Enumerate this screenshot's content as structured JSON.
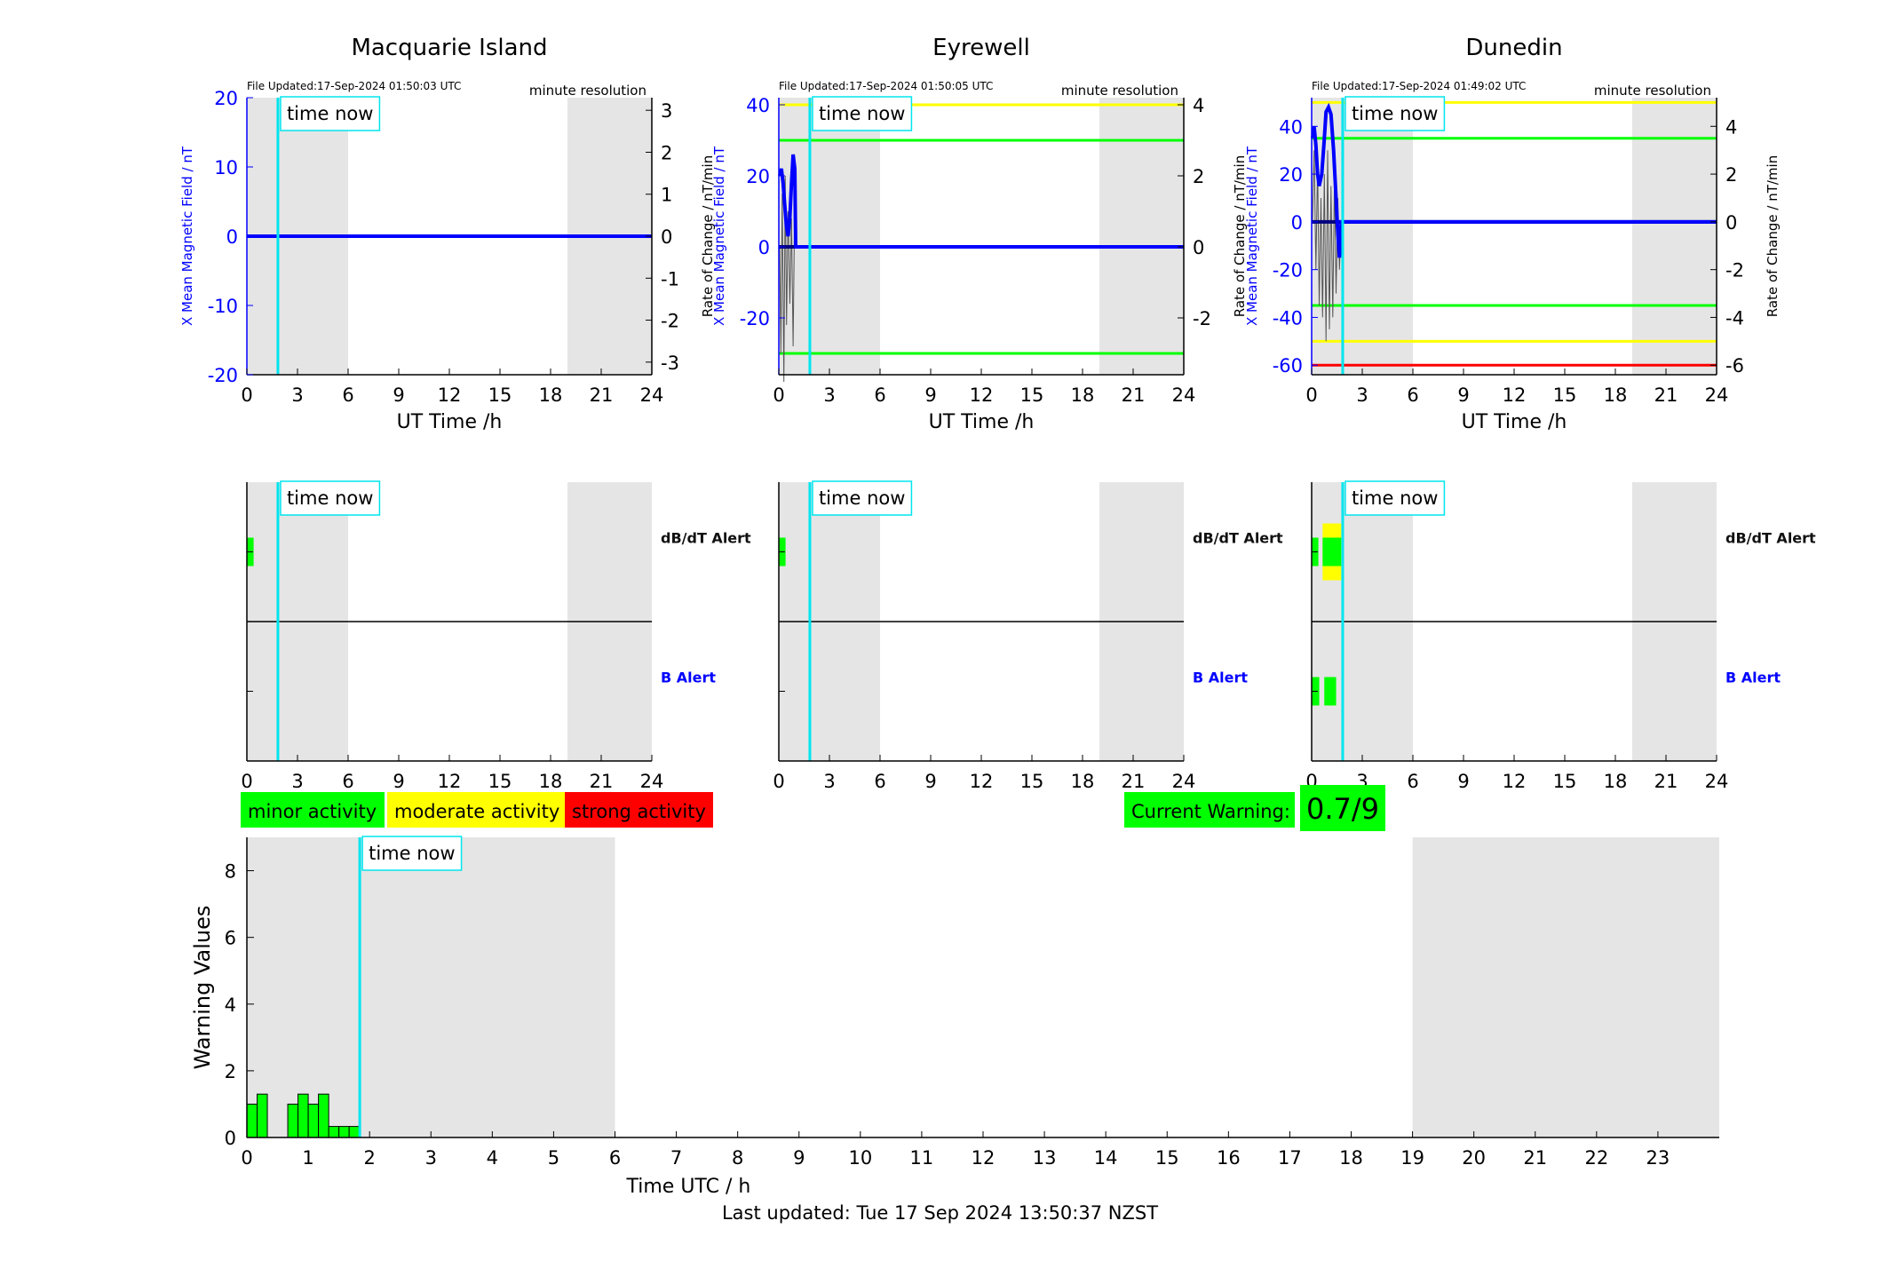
{
  "footer": "Last updated: Tue 17 Sep 2024 13:50:37 NZST",
  "legend": {
    "minor": "minor activity",
    "moderate": "moderate activity",
    "strong": "strong activity",
    "current_warning_label": "Current Warning:",
    "current_warning_value": "0.7/9"
  },
  "colors": {
    "minor": "#00ff00",
    "moderate": "#ffff00",
    "strong": "#ff0000",
    "now_line": "#00e5ee",
    "field_line": "#0000ff",
    "dark_line": "#000080",
    "shade": "#e5e5e5"
  },
  "chart_data": [
    {
      "type": "line",
      "title": "Macquarie Island",
      "updated": "File Updated:17-Sep-2024 01:50:03 UTC",
      "resolution": "minute resolution",
      "xlabel": "UT Time /h",
      "ylabel": "X Mean Magnetic Field / nT",
      "y2label": "Rate of Change / nT/min",
      "xlim": [
        0,
        24
      ],
      "xticks": [
        0,
        3,
        6,
        9,
        12,
        15,
        18,
        21,
        24
      ],
      "ylim": [
        -20,
        20
      ],
      "yticks": [
        -20,
        -10,
        0,
        10,
        20
      ],
      "y2lim": [
        -3.3,
        3.3
      ],
      "y2ticks": [
        -3,
        -2,
        -1,
        0,
        1,
        2,
        3
      ],
      "shade": [
        [
          0,
          6
        ],
        [
          19,
          24
        ]
      ],
      "now_label": "time now",
      "now": 1.84,
      "thresholds": [],
      "field": [
        [
          0,
          0
        ],
        [
          24,
          0
        ]
      ],
      "rate": []
    },
    {
      "type": "line",
      "title": "Eyrewell",
      "updated": "File Updated:17-Sep-2024 01:50:05 UTC",
      "resolution": "minute resolution",
      "xlabel": "UT Time /h",
      "ylabel": "X Mean Magnetic Field / nT",
      "y2label": "Rate of Change / nT/min",
      "xlim": [
        0,
        24
      ],
      "xticks": [
        0,
        3,
        6,
        9,
        12,
        15,
        18,
        21,
        24
      ],
      "ylim": [
        -36,
        42
      ],
      "yticks": [
        -20,
        0,
        20,
        40
      ],
      "y2lim": [
        -3.6,
        4.2
      ],
      "y2ticks": [
        -2,
        0,
        2,
        4
      ],
      "shade": [
        [
          0,
          6
        ],
        [
          19,
          24
        ]
      ],
      "now_label": "time now",
      "now": 1.84,
      "thresholds": [
        {
          "y": 40,
          "color": "#ffff00"
        },
        {
          "y": 30,
          "color": "#00ff00"
        },
        {
          "y": -30,
          "color": "#00ff00"
        }
      ],
      "field": [
        [
          0.05,
          20
        ],
        [
          0.15,
          22
        ],
        [
          0.25,
          18
        ],
        [
          0.35,
          12
        ],
        [
          0.45,
          6
        ],
        [
          0.55,
          3
        ],
        [
          0.65,
          8
        ],
        [
          0.75,
          18
        ],
        [
          0.85,
          26
        ],
        [
          0.95,
          22
        ],
        [
          1.0,
          0
        ],
        [
          24,
          0
        ]
      ],
      "rate": [
        [
          0.05,
          0
        ],
        [
          0.12,
          -3
        ],
        [
          0.2,
          1.5
        ],
        [
          0.3,
          -3.8
        ],
        [
          0.38,
          2
        ],
        [
          0.46,
          -2.2
        ],
        [
          0.55,
          1
        ],
        [
          0.65,
          -1.6
        ],
        [
          0.75,
          0.8
        ],
        [
          0.85,
          -2.8
        ],
        [
          0.95,
          1.5
        ],
        [
          1.0,
          0
        ]
      ]
    },
    {
      "type": "line",
      "title": "Dunedin",
      "updated": "File Updated:17-Sep-2024 01:49:02 UTC",
      "resolution": "minute resolution",
      "xlabel": "UT Time /h",
      "ylabel": "X Mean Magnetic Field / nT",
      "y2label": "Rate of Change / nT/min",
      "xlim": [
        0,
        24
      ],
      "xticks": [
        0,
        3,
        6,
        9,
        12,
        15,
        18,
        21,
        24
      ],
      "ylim": [
        -64,
        52
      ],
      "yticks": [
        -60,
        -40,
        -20,
        0,
        20,
        40
      ],
      "y2lim": [
        -6.4,
        5.2
      ],
      "y2ticks": [
        -6,
        -4,
        -2,
        0,
        2,
        4
      ],
      "shade": [
        [
          0,
          6
        ],
        [
          19,
          24
        ]
      ],
      "now_label": "time now",
      "now": 1.84,
      "thresholds": [
        {
          "y": 50,
          "color": "#ffff00"
        },
        {
          "y": 35,
          "color": "#00ff00"
        },
        {
          "y": -35,
          "color": "#00ff00"
        },
        {
          "y": -50,
          "color": "#ffff00"
        },
        {
          "y": -60,
          "color": "#ff0000"
        }
      ],
      "field": [
        [
          0.05,
          35
        ],
        [
          0.15,
          40
        ],
        [
          0.25,
          32
        ],
        [
          0.35,
          20
        ],
        [
          0.45,
          15
        ],
        [
          0.6,
          20
        ],
        [
          0.75,
          35
        ],
        [
          0.85,
          46
        ],
        [
          1.0,
          48
        ],
        [
          1.15,
          45
        ],
        [
          1.3,
          30
        ],
        [
          1.45,
          10
        ],
        [
          1.55,
          -5
        ],
        [
          1.65,
          -15
        ],
        [
          1.75,
          0
        ],
        [
          24,
          0
        ]
      ],
      "rate": [
        [
          0.05,
          0
        ],
        [
          0.15,
          3
        ],
        [
          0.25,
          -2
        ],
        [
          0.35,
          2.5
        ],
        [
          0.45,
          -3.5
        ],
        [
          0.55,
          1
        ],
        [
          0.65,
          -4
        ],
        [
          0.75,
          2
        ],
        [
          0.85,
          -5
        ],
        [
          0.95,
          3
        ],
        [
          1.05,
          -4.5
        ],
        [
          1.15,
          1.5
        ],
        [
          1.25,
          -4
        ],
        [
          1.35,
          2
        ],
        [
          1.45,
          -3
        ],
        [
          1.55,
          1
        ],
        [
          1.65,
          -2
        ],
        [
          1.75,
          0
        ]
      ]
    },
    {
      "type": "bar",
      "title": "",
      "xlim": [
        0,
        24
      ],
      "xticks": [
        0,
        3,
        6,
        9,
        12,
        15,
        18,
        21,
        24
      ],
      "shade": [
        [
          0,
          6
        ],
        [
          19,
          24
        ]
      ],
      "now_label": "time now",
      "now": 1.84,
      "rows": [
        {
          "label": "dB/dT Alert",
          "label_color": "#111111",
          "bars": [
            {
              "x0": 0.0,
              "x1": 0.4,
              "color": "#00ff00"
            }
          ]
        },
        {
          "label": "B Alert",
          "label_color": "#0000ff",
          "bars": []
        }
      ]
    },
    {
      "type": "bar",
      "title": "",
      "xlim": [
        0,
        24
      ],
      "xticks": [
        0,
        3,
        6,
        9,
        12,
        15,
        18,
        21,
        24
      ],
      "shade": [
        [
          0,
          6
        ],
        [
          19,
          24
        ]
      ],
      "now_label": "time now",
      "now": 1.84,
      "rows": [
        {
          "label": "dB/dT Alert",
          "label_color": "#111111",
          "bars": [
            {
              "x0": 0.0,
              "x1": 0.4,
              "color": "#00ff00"
            }
          ]
        },
        {
          "label": "B Alert",
          "label_color": "#0000ff",
          "bars": []
        }
      ]
    },
    {
      "type": "bar",
      "title": "",
      "xlim": [
        0,
        24
      ],
      "xticks": [
        0,
        3,
        6,
        9,
        12,
        15,
        18,
        21,
        24
      ],
      "shade": [
        [
          0,
          6
        ],
        [
          19,
          24
        ]
      ],
      "now_label": "time now",
      "now": 1.84,
      "rows": [
        {
          "label": "dB/dT Alert",
          "label_color": "#111111",
          "bars": [
            {
              "x0": 0.0,
              "x1": 0.4,
              "color": "#00ff00"
            },
            {
              "x0": 0.65,
              "x1": 1.75,
              "color": "#ffff00",
              "tall": true
            },
            {
              "x0": 0.65,
              "x1": 1.75,
              "color": "#00ff00"
            }
          ]
        },
        {
          "label": "B Alert",
          "label_color": "#0000ff",
          "bars": [
            {
              "x0": 0.0,
              "x1": 0.45,
              "color": "#00ff00"
            },
            {
              "x0": 0.75,
              "x1": 1.45,
              "color": "#00ff00"
            }
          ]
        }
      ]
    },
    {
      "type": "bar",
      "title": "",
      "xlabel": "Time UTC / h",
      "ylabel": "Warning Values",
      "xlim": [
        0,
        24
      ],
      "xticks": [
        0,
        1,
        2,
        3,
        4,
        5,
        6,
        7,
        8,
        9,
        10,
        11,
        12,
        13,
        14,
        15,
        16,
        17,
        18,
        19,
        20,
        21,
        22,
        23
      ],
      "ylim": [
        0,
        9
      ],
      "yticks": [
        0,
        2,
        4,
        6,
        8
      ],
      "shade": [
        [
          0,
          6
        ],
        [
          19,
          24
        ]
      ],
      "now_label": "time now",
      "now": 1.84,
      "bar_width": 0.1667,
      "bar_starts": [
        0.0,
        0.1667,
        0.6667,
        0.8333,
        1.0,
        1.1667,
        1.3333,
        1.5,
        1.6667
      ],
      "bar_values": [
        1.0,
        1.3,
        1.0,
        1.3,
        1.0,
        1.3,
        0.33,
        0.33,
        0.33
      ]
    }
  ]
}
